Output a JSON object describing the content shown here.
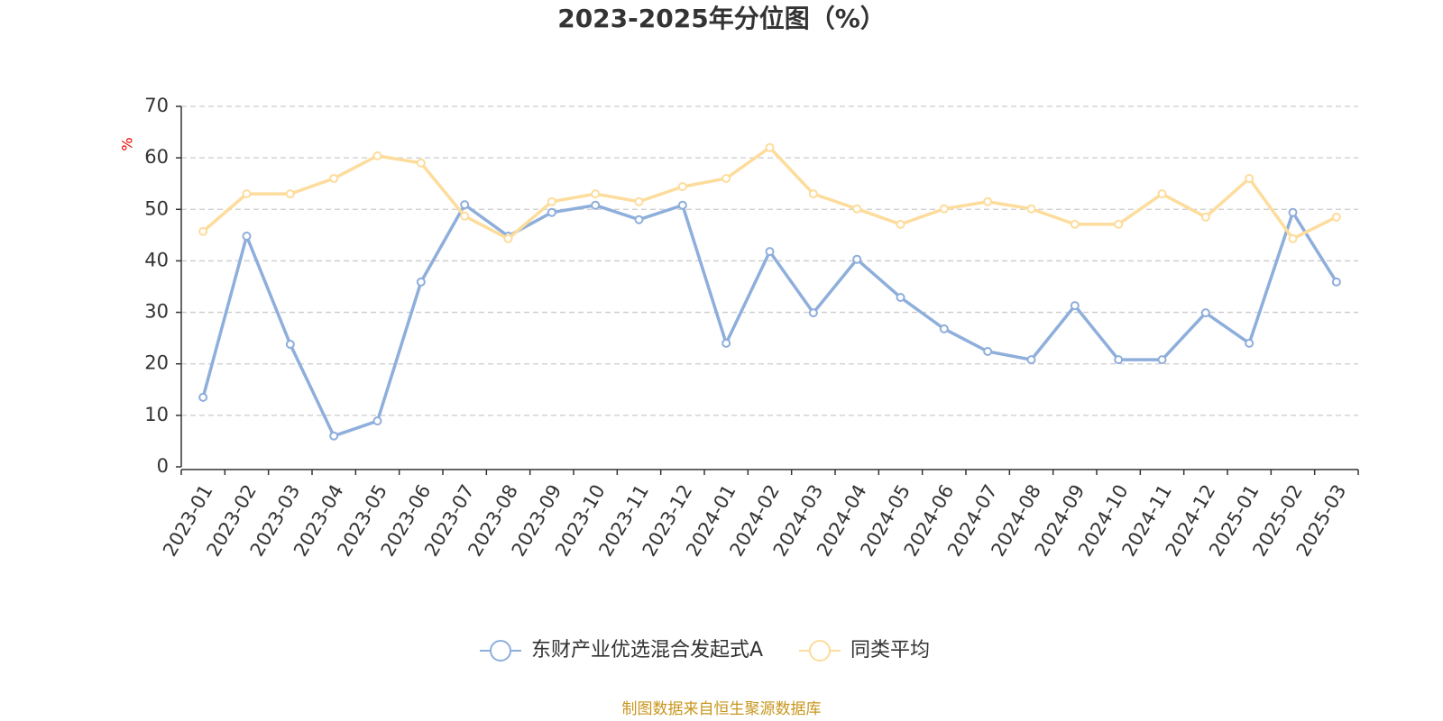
{
  "chart_data": {
    "type": "line",
    "title": "2023-2025年分位图（%）",
    "y_label": "%",
    "source": "制图数据来自恒生聚源数据库",
    "categories": [
      "2023-01",
      "2023-02",
      "2023-03",
      "2023-04",
      "2023-05",
      "2023-06",
      "2023-07",
      "2023-08",
      "2023-09",
      "2023-10",
      "2023-11",
      "2023-12",
      "2024-01",
      "2024-02",
      "2024-03",
      "2024-04",
      "2024-05",
      "2024-06",
      "2024-07",
      "2024-08",
      "2024-09",
      "2024-10",
      "2024-11",
      "2024-12",
      "2025-01",
      "2025-02",
      "2025-03"
    ],
    "series": [
      {
        "name": "东财产业优选混合发起式A",
        "color": "#8eaedb",
        "values": [
          13.5,
          44.8,
          23.8,
          6.0,
          8.9,
          35.9,
          50.9,
          44.8,
          49.4,
          50.8,
          48.0,
          50.8,
          24.0,
          41.8,
          29.9,
          40.3,
          32.9,
          26.8,
          22.4,
          20.8,
          31.3,
          20.8,
          20.8,
          29.9,
          24.0,
          49.4,
          35.9
        ]
      },
      {
        "name": "同类平均",
        "color": "#fddc9c",
        "values": [
          45.7,
          53.0,
          53.0,
          56.0,
          60.4,
          59.0,
          48.7,
          44.3,
          51.5,
          53.0,
          51.5,
          54.4,
          56.0,
          62.0,
          53.0,
          50.1,
          47.1,
          50.1,
          51.5,
          50.1,
          47.1,
          47.1,
          53.0,
          48.5,
          56.0,
          44.3,
          48.5
        ]
      }
    ],
    "ylim": [
      0,
      70
    ],
    "yticks": [
      0,
      10,
      20,
      30,
      40,
      50,
      60,
      70
    ],
    "grid": true
  }
}
